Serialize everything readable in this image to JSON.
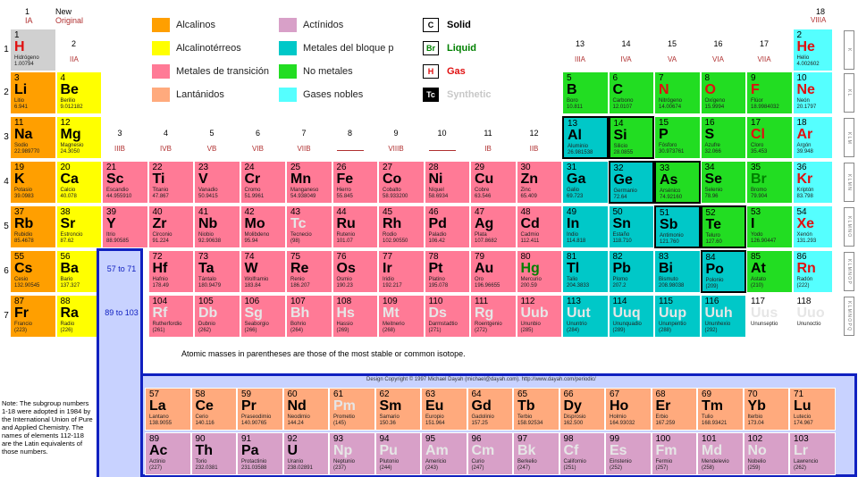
{
  "header": {
    "group1": "1",
    "group1_iupac": "IA",
    "new_label": "New",
    "original_label": "Original",
    "group18": "18",
    "group18_iupac": "VIIIA",
    "group2": "2",
    "group2_iupac": "IIA"
  },
  "legend": [
    {
      "label": "Alcalinos",
      "color": "#ff9f00"
    },
    {
      "label": "Alcalinotérreos",
      "color": "#ffff00"
    },
    {
      "label": "Metales de transición",
      "color": "#ff7a96"
    },
    {
      "label": "Lantánidos",
      "color": "#ffaa7d"
    },
    {
      "label": "Actínidos",
      "color": "#d8a0c8"
    },
    {
      "label": "Metales del bloque p",
      "color": "#00c8c8"
    },
    {
      "label": "No metales",
      "color": "#22dd22"
    },
    {
      "label": "Gases nobles",
      "color": "#55ffff"
    }
  ],
  "states": [
    {
      "box": "C",
      "label": "Solid",
      "color": "#000000"
    },
    {
      "box": "Br",
      "label": "Liquid",
      "color": "#008000"
    },
    {
      "box": "H",
      "label": "Gas",
      "color": "#e01010"
    },
    {
      "box": "Tc",
      "label": "Synthetic",
      "color": "#c8c8c8"
    }
  ],
  "groups": [
    {
      "n": "3",
      "r": "IIIB"
    },
    {
      "n": "4",
      "r": "IVB"
    },
    {
      "n": "5",
      "r": "VB"
    },
    {
      "n": "6",
      "r": "VIB"
    },
    {
      "n": "7",
      "r": "VIIB"
    },
    {
      "n": "8",
      "r": ""
    },
    {
      "n": "9",
      "r": "VIIIB"
    },
    {
      "n": "10",
      "r": ""
    },
    {
      "n": "11",
      "r": "IB"
    },
    {
      "n": "12",
      "r": "IIB"
    },
    {
      "n": "13",
      "r": "IIIA"
    },
    {
      "n": "14",
      "r": "IVA"
    },
    {
      "n": "15",
      "r": "VA"
    },
    {
      "n": "16",
      "r": "VIA"
    },
    {
      "n": "17",
      "r": "VIIA"
    }
  ],
  "periods": [
    "1",
    "2",
    "3",
    "4",
    "5",
    "6",
    "7"
  ],
  "lanthanide_ref": "57 to 71",
  "actinide_ref": "89 to 103",
  "note_masses": "Atomic masses in parentheses are those of the most stable or common isotope.",
  "copyright": "Design Copyright © 1997 Michael Dayah (michael@dayah.com). http://www.dayah.com/periodic/",
  "footnote": "Note: The subgroup numbers 1-18 were adopted in 1984 by the International Union of Pure and Applied Chemistry. The names of elements 112-118 are the Latin equivalents of those numbers.",
  "elements": [
    {
      "z": "1",
      "s": "H",
      "n": "Hidrógeno",
      "m": "1.00794",
      "c": "c-h",
      "st": "gas",
      "g": 1,
      "p": 1
    },
    {
      "z": "2",
      "s": "He",
      "n": "Helio",
      "m": "4.002602",
      "c": "c-ng",
      "st": "gas",
      "g": 18,
      "p": 1
    },
    {
      "z": "3",
      "s": "Li",
      "n": "Litio",
      "m": "6.941",
      "c": "c-alk",
      "g": 1,
      "p": 2
    },
    {
      "z": "4",
      "s": "Be",
      "n": "Berilio",
      "m": "9.012182",
      "c": "c-ae",
      "g": 2,
      "p": 2
    },
    {
      "z": "5",
      "s": "B",
      "n": "Boro",
      "m": "10.811",
      "c": "c-nm",
      "g": 13,
      "p": 2
    },
    {
      "z": "6",
      "s": "C",
      "n": "Carbono",
      "m": "12.0107",
      "c": "c-nm",
      "g": 14,
      "p": 2
    },
    {
      "z": "7",
      "s": "N",
      "n": "Nitrógeno",
      "m": "14.00674",
      "c": "c-nm",
      "st": "gas",
      "g": 15,
      "p": 2
    },
    {
      "z": "8",
      "s": "O",
      "n": "Oxígeno",
      "m": "15.9994",
      "c": "c-nm",
      "st": "gas",
      "g": 16,
      "p": 2
    },
    {
      "z": "9",
      "s": "F",
      "n": "Flúor",
      "m": "18.9984032",
      "c": "c-nm",
      "st": "gas",
      "g": 17,
      "p": 2
    },
    {
      "z": "10",
      "s": "Ne",
      "n": "Neón",
      "m": "20.1797",
      "c": "c-ng",
      "st": "gas",
      "g": 18,
      "p": 2
    },
    {
      "z": "11",
      "s": "Na",
      "n": "Sodio",
      "m": "22.989770",
      "c": "c-alk",
      "g": 1,
      "p": 3
    },
    {
      "z": "12",
      "s": "Mg",
      "n": "Magnesio",
      "m": "24.3050",
      "c": "c-ae",
      "g": 2,
      "p": 3
    },
    {
      "z": "13",
      "s": "Al",
      "n": "Aluminio",
      "m": "26.981538",
      "c": "c-pb",
      "g": 13,
      "p": 3,
      "b": 1
    },
    {
      "z": "14",
      "s": "Si",
      "n": "Silicio",
      "m": "28.0855",
      "c": "c-nm",
      "g": 14,
      "p": 3,
      "b": 1
    },
    {
      "z": "15",
      "s": "P",
      "n": "Fósforo",
      "m": "30.973761",
      "c": "c-nm",
      "g": 15,
      "p": 3
    },
    {
      "z": "16",
      "s": "S",
      "n": "Azufre",
      "m": "32.066",
      "c": "c-nm",
      "g": 16,
      "p": 3
    },
    {
      "z": "17",
      "s": "Cl",
      "n": "Cloro",
      "m": "35.453",
      "c": "c-nm",
      "st": "gas",
      "g": 17,
      "p": 3
    },
    {
      "z": "18",
      "s": "Ar",
      "n": "Argón",
      "m": "39.948",
      "c": "c-ng",
      "st": "gas",
      "g": 18,
      "p": 3
    },
    {
      "z": "19",
      "s": "K",
      "n": "Potasio",
      "m": "39.0983",
      "c": "c-alk",
      "g": 1,
      "p": 4
    },
    {
      "z": "20",
      "s": "Ca",
      "n": "Calcio",
      "m": "40.078",
      "c": "c-ae",
      "g": 2,
      "p": 4
    },
    {
      "z": "21",
      "s": "Sc",
      "n": "Escandio",
      "m": "44.955910",
      "c": "c-tm",
      "g": 3,
      "p": 4
    },
    {
      "z": "22",
      "s": "Ti",
      "n": "Titanio",
      "m": "47.867",
      "c": "c-tm",
      "g": 4,
      "p": 4
    },
    {
      "z": "23",
      "s": "V",
      "n": "Vanadio",
      "m": "50.9415",
      "c": "c-tm",
      "g": 5,
      "p": 4
    },
    {
      "z": "24",
      "s": "Cr",
      "n": "Cromo",
      "m": "51.9961",
      "c": "c-tm",
      "g": 6,
      "p": 4
    },
    {
      "z": "25",
      "s": "Mn",
      "n": "Manganeso",
      "m": "54.938049",
      "c": "c-tm",
      "g": 7,
      "p": 4
    },
    {
      "z": "26",
      "s": "Fe",
      "n": "Hierro",
      "m": "55.845",
      "c": "c-tm",
      "g": 8,
      "p": 4
    },
    {
      "z": "27",
      "s": "Co",
      "n": "Cobalto",
      "m": "58.933200",
      "c": "c-tm",
      "g": 9,
      "p": 4
    },
    {
      "z": "28",
      "s": "Ni",
      "n": "Níquel",
      "m": "58.6934",
      "c": "c-tm",
      "g": 10,
      "p": 4
    },
    {
      "z": "29",
      "s": "Cu",
      "n": "Cobre",
      "m": "63.546",
      "c": "c-tm",
      "g": 11,
      "p": 4
    },
    {
      "z": "30",
      "s": "Zn",
      "n": "Zinc",
      "m": "65.409",
      "c": "c-tm",
      "g": 12,
      "p": 4
    },
    {
      "z": "31",
      "s": "Ga",
      "n": "Galio",
      "m": "69.723",
      "c": "c-pb",
      "g": 13,
      "p": 4
    },
    {
      "z": "32",
      "s": "Ge",
      "n": "Germanio",
      "m": "72.64",
      "c": "c-pb",
      "g": 14,
      "p": 4,
      "b": 1
    },
    {
      "z": "33",
      "s": "As",
      "n": "Arsénico",
      "m": "74.92160",
      "c": "c-nm",
      "g": 15,
      "p": 4,
      "b": 1
    },
    {
      "z": "34",
      "s": "Se",
      "n": "Selenio",
      "m": "78.96",
      "c": "c-nm",
      "g": 16,
      "p": 4
    },
    {
      "z": "35",
      "s": "Br",
      "n": "Bromo",
      "m": "79.904",
      "c": "c-nm",
      "st": "liq",
      "g": 17,
      "p": 4
    },
    {
      "z": "36",
      "s": "Kr",
      "n": "Kriptón",
      "m": "83.798",
      "c": "c-ng",
      "st": "gas",
      "g": 18,
      "p": 4
    },
    {
      "z": "37",
      "s": "Rb",
      "n": "Rubidio",
      "m": "85.4678",
      "c": "c-alk",
      "g": 1,
      "p": 5
    },
    {
      "z": "38",
      "s": "Sr",
      "n": "Estroncio",
      "m": "87.62",
      "c": "c-ae",
      "g": 2,
      "p": 5
    },
    {
      "z": "39",
      "s": "Y",
      "n": "Itrio",
      "m": "88.90585",
      "c": "c-tm",
      "g": 3,
      "p": 5
    },
    {
      "z": "40",
      "s": "Zr",
      "n": "Circonio",
      "m": "91.224",
      "c": "c-tm",
      "g": 4,
      "p": 5
    },
    {
      "z": "41",
      "s": "Nb",
      "n": "Niobio",
      "m": "92.90638",
      "c": "c-tm",
      "g": 5,
      "p": 5
    },
    {
      "z": "42",
      "s": "Mo",
      "n": "Molibdeno",
      "m": "95.94",
      "c": "c-tm",
      "g": 6,
      "p": 5
    },
    {
      "z": "43",
      "s": "Tc",
      "n": "Tecnecio",
      "m": "(98)",
      "c": "c-tm",
      "st": "syn",
      "g": 7,
      "p": 5
    },
    {
      "z": "44",
      "s": "Ru",
      "n": "Rutenio",
      "m": "101.07",
      "c": "c-tm",
      "g": 8,
      "p": 5
    },
    {
      "z": "45",
      "s": "Rh",
      "n": "Rodio",
      "m": "102.90550",
      "c": "c-tm",
      "g": 9,
      "p": 5
    },
    {
      "z": "46",
      "s": "Pd",
      "n": "Paladio",
      "m": "106.42",
      "c": "c-tm",
      "g": 10,
      "p": 5
    },
    {
      "z": "47",
      "s": "Ag",
      "n": "Plata",
      "m": "107.8682",
      "c": "c-tm",
      "g": 11,
      "p": 5
    },
    {
      "z": "48",
      "s": "Cd",
      "n": "Cadmio",
      "m": "112.411",
      "c": "c-tm",
      "g": 12,
      "p": 5
    },
    {
      "z": "49",
      "s": "In",
      "n": "Indio",
      "m": "114.818",
      "c": "c-pb",
      "g": 13,
      "p": 5
    },
    {
      "z": "50",
      "s": "Sn",
      "n": "Estaño",
      "m": "118.710",
      "c": "c-pb",
      "g": 14,
      "p": 5
    },
    {
      "z": "51",
      "s": "Sb",
      "n": "Antimonio",
      "m": "121.760",
      "c": "c-pb",
      "g": 15,
      "p": 5,
      "b": 1
    },
    {
      "z": "52",
      "s": "Te",
      "n": "Teluro",
      "m": "127.60",
      "c": "c-nm",
      "g": 16,
      "p": 5,
      "b": 1
    },
    {
      "z": "53",
      "s": "I",
      "n": "Yodo",
      "m": "126.90447",
      "c": "c-nm",
      "g": 17,
      "p": 5
    },
    {
      "z": "54",
      "s": "Xe",
      "n": "Xenón",
      "m": "131.293",
      "c": "c-ng",
      "st": "gas",
      "g": 18,
      "p": 5
    },
    {
      "z": "55",
      "s": "Cs",
      "n": "Cesio",
      "m": "132.90545",
      "c": "c-alk",
      "g": 1,
      "p": 6
    },
    {
      "z": "56",
      "s": "Ba",
      "n": "Bario",
      "m": "137.327",
      "c": "c-ae",
      "g": 2,
      "p": 6
    },
    {
      "z": "72",
      "s": "Hf",
      "n": "Hafnio",
      "m": "178.49",
      "c": "c-tm",
      "g": 4,
      "p": 6
    },
    {
      "z": "73",
      "s": "Ta",
      "n": "Tántalo",
      "m": "180.9479",
      "c": "c-tm",
      "g": 5,
      "p": 6
    },
    {
      "z": "74",
      "s": "W",
      "n": "Wolframio",
      "m": "183.84",
      "c": "c-tm",
      "g": 6,
      "p": 6
    },
    {
      "z": "75",
      "s": "Re",
      "n": "Renio",
      "m": "186.207",
      "c": "c-tm",
      "g": 7,
      "p": 6
    },
    {
      "z": "76",
      "s": "Os",
      "n": "Osmio",
      "m": "190.23",
      "c": "c-tm",
      "g": 8,
      "p": 6
    },
    {
      "z": "77",
      "s": "Ir",
      "n": "Iridio",
      "m": "192.217",
      "c": "c-tm",
      "g": 9,
      "p": 6
    },
    {
      "z": "78",
      "s": "Pt",
      "n": "Platino",
      "m": "195.078",
      "c": "c-tm",
      "g": 10,
      "p": 6
    },
    {
      "z": "79",
      "s": "Au",
      "n": "Oro",
      "m": "196.96655",
      "c": "c-tm",
      "g": 11,
      "p": 6
    },
    {
      "z": "80",
      "s": "Hg",
      "n": "Mercurio",
      "m": "200.59",
      "c": "c-tm",
      "st": "liq",
      "g": 12,
      "p": 6
    },
    {
      "z": "81",
      "s": "Tl",
      "n": "Talio",
      "m": "204.3833",
      "c": "c-pb",
      "g": 13,
      "p": 6
    },
    {
      "z": "82",
      "s": "Pb",
      "n": "Plomo",
      "m": "207.2",
      "c": "c-pb",
      "g": 14,
      "p": 6
    },
    {
      "z": "83",
      "s": "Bi",
      "n": "Bismuto",
      "m": "208.98038",
      "c": "c-pb",
      "g": 15,
      "p": 6
    },
    {
      "z": "84",
      "s": "Po",
      "n": "Polonio",
      "m": "(209)",
      "c": "c-pb",
      "g": 16,
      "p": 6,
      "b": 1
    },
    {
      "z": "85",
      "s": "At",
      "n": "Astato",
      "m": "(210)",
      "c": "c-nm",
      "g": 17,
      "p": 6
    },
    {
      "z": "86",
      "s": "Rn",
      "n": "Radón",
      "m": "(222)",
      "c": "c-ng",
      "st": "gas",
      "g": 18,
      "p": 6
    },
    {
      "z": "87",
      "s": "Fr",
      "n": "Francio",
      "m": "(223)",
      "c": "c-alk",
      "g": 1,
      "p": 7
    },
    {
      "z": "88",
      "s": "Ra",
      "n": "Radio",
      "m": "(226)",
      "c": "c-ae",
      "g": 2,
      "p": 7
    },
    {
      "z": "104",
      "s": "Rf",
      "n": "Rutherfordio",
      "m": "(261)",
      "c": "c-tm",
      "st": "syn",
      "g": 4,
      "p": 7
    },
    {
      "z": "105",
      "s": "Db",
      "n": "Dubnio",
      "m": "(262)",
      "c": "c-tm",
      "st": "syn",
      "g": 5,
      "p": 7
    },
    {
      "z": "106",
      "s": "Sg",
      "n": "Seaborgio",
      "m": "(266)",
      "c": "c-tm",
      "st": "syn",
      "g": 6,
      "p": 7
    },
    {
      "z": "107",
      "s": "Bh",
      "n": "Bohrio",
      "m": "(264)",
      "c": "c-tm",
      "st": "syn",
      "g": 7,
      "p": 7
    },
    {
      "z": "108",
      "s": "Hs",
      "n": "Hassio",
      "m": "(269)",
      "c": "c-tm",
      "st": "syn",
      "g": 8,
      "p": 7
    },
    {
      "z": "109",
      "s": "Mt",
      "n": "Meitnerio",
      "m": "(268)",
      "c": "c-tm",
      "st": "syn",
      "g": 9,
      "p": 7
    },
    {
      "z": "110",
      "s": "Ds",
      "n": "Darmstadtio",
      "m": "(271)",
      "c": "c-tm",
      "st": "syn",
      "g": 10,
      "p": 7
    },
    {
      "z": "111",
      "s": "Rg",
      "n": "Roentgenio",
      "m": "(272)",
      "c": "c-tm",
      "st": "syn",
      "g": 11,
      "p": 7
    },
    {
      "z": "112",
      "s": "Uub",
      "n": "Ununbio",
      "m": "(285)",
      "c": "c-tm",
      "st": "syn",
      "g": 12,
      "p": 7
    },
    {
      "z": "113",
      "s": "Uut",
      "n": "Ununtrio",
      "m": "(284)",
      "c": "c-pb",
      "st": "syn",
      "g": 13,
      "p": 7
    },
    {
      "z": "114",
      "s": "Uuq",
      "n": "Ununquadio",
      "m": "(289)",
      "c": "c-pb",
      "st": "syn",
      "g": 14,
      "p": 7
    },
    {
      "z": "115",
      "s": "Uup",
      "n": "Ununpentio",
      "m": "(288)",
      "c": "c-pb",
      "st": "syn",
      "g": 15,
      "p": 7
    },
    {
      "z": "116",
      "s": "Uuh",
      "n": "Ununhexio",
      "m": "(292)",
      "c": "c-pb",
      "st": "syn",
      "g": 16,
      "p": 7
    },
    {
      "z": "117",
      "s": "Uus",
      "n": "Ununseptio",
      "m": "",
      "c": "c-unk",
      "st": "syn",
      "g": 17,
      "p": 7
    },
    {
      "z": "118",
      "s": "Uuo",
      "n": "Ununoctio",
      "m": "",
      "c": "c-unk",
      "st": "syn",
      "g": 18,
      "p": 7
    }
  ],
  "lanthanides": [
    {
      "z": "57",
      "s": "La",
      "n": "Lantano",
      "m": "138.9055"
    },
    {
      "z": "58",
      "s": "Ce",
      "n": "Cerio",
      "m": "140.116"
    },
    {
      "z": "59",
      "s": "Pr",
      "n": "Praseodimio",
      "m": "140.90765"
    },
    {
      "z": "60",
      "s": "Nd",
      "n": "Neodimio",
      "m": "144.24"
    },
    {
      "z": "61",
      "s": "Pm",
      "n": "Prometio",
      "m": "(145)",
      "st": "syn"
    },
    {
      "z": "62",
      "s": "Sm",
      "n": "Samario",
      "m": "150.36"
    },
    {
      "z": "63",
      "s": "Eu",
      "n": "Europio",
      "m": "151.964"
    },
    {
      "z": "64",
      "s": "Gd",
      "n": "Gadolinio",
      "m": "157.25"
    },
    {
      "z": "65",
      "s": "Tb",
      "n": "Terbio",
      "m": "158.92534"
    },
    {
      "z": "66",
      "s": "Dy",
      "n": "Disprosio",
      "m": "162.500"
    },
    {
      "z": "67",
      "s": "Ho",
      "n": "Holmio",
      "m": "164.93032"
    },
    {
      "z": "68",
      "s": "Er",
      "n": "Erbio",
      "m": "167.259"
    },
    {
      "z": "69",
      "s": "Tm",
      "n": "Tulio",
      "m": "168.93421"
    },
    {
      "z": "70",
      "s": "Yb",
      "n": "Iterbio",
      "m": "173.04"
    },
    {
      "z": "71",
      "s": "Lu",
      "n": "Lutecio",
      "m": "174.967"
    }
  ],
  "actinides": [
    {
      "z": "89",
      "s": "Ac",
      "n": "Actinio",
      "m": "(227)"
    },
    {
      "z": "90",
      "s": "Th",
      "n": "Torio",
      "m": "232.0381"
    },
    {
      "z": "91",
      "s": "Pa",
      "n": "Protactinio",
      "m": "231.03588"
    },
    {
      "z": "92",
      "s": "U",
      "n": "Uranio",
      "m": "238.02891"
    },
    {
      "z": "93",
      "s": "Np",
      "n": "Neptunio",
      "m": "(237)",
      "st": "syn"
    },
    {
      "z": "94",
      "s": "Pu",
      "n": "Plutonio",
      "m": "(244)",
      "st": "syn"
    },
    {
      "z": "95",
      "s": "Am",
      "n": "Americio",
      "m": "(243)",
      "st": "syn"
    },
    {
      "z": "96",
      "s": "Cm",
      "n": "Curio",
      "m": "(247)",
      "st": "syn"
    },
    {
      "z": "97",
      "s": "Bk",
      "n": "Berkelio",
      "m": "(247)",
      "st": "syn"
    },
    {
      "z": "98",
      "s": "Cf",
      "n": "Californio",
      "m": "(251)",
      "st": "syn"
    },
    {
      "z": "99",
      "s": "Es",
      "n": "Einstenio",
      "m": "(252)",
      "st": "syn"
    },
    {
      "z": "100",
      "s": "Fm",
      "n": "Fermio",
      "m": "(257)",
      "st": "syn"
    },
    {
      "z": "101",
      "s": "Md",
      "n": "Mendelevio",
      "m": "(258)",
      "st": "syn"
    },
    {
      "z": "102",
      "s": "No",
      "n": "Nobelio",
      "m": "(259)",
      "st": "syn"
    },
    {
      "z": "103",
      "s": "Lr",
      "n": "Lawrencio",
      "m": "(262)",
      "st": "syn"
    }
  ]
}
